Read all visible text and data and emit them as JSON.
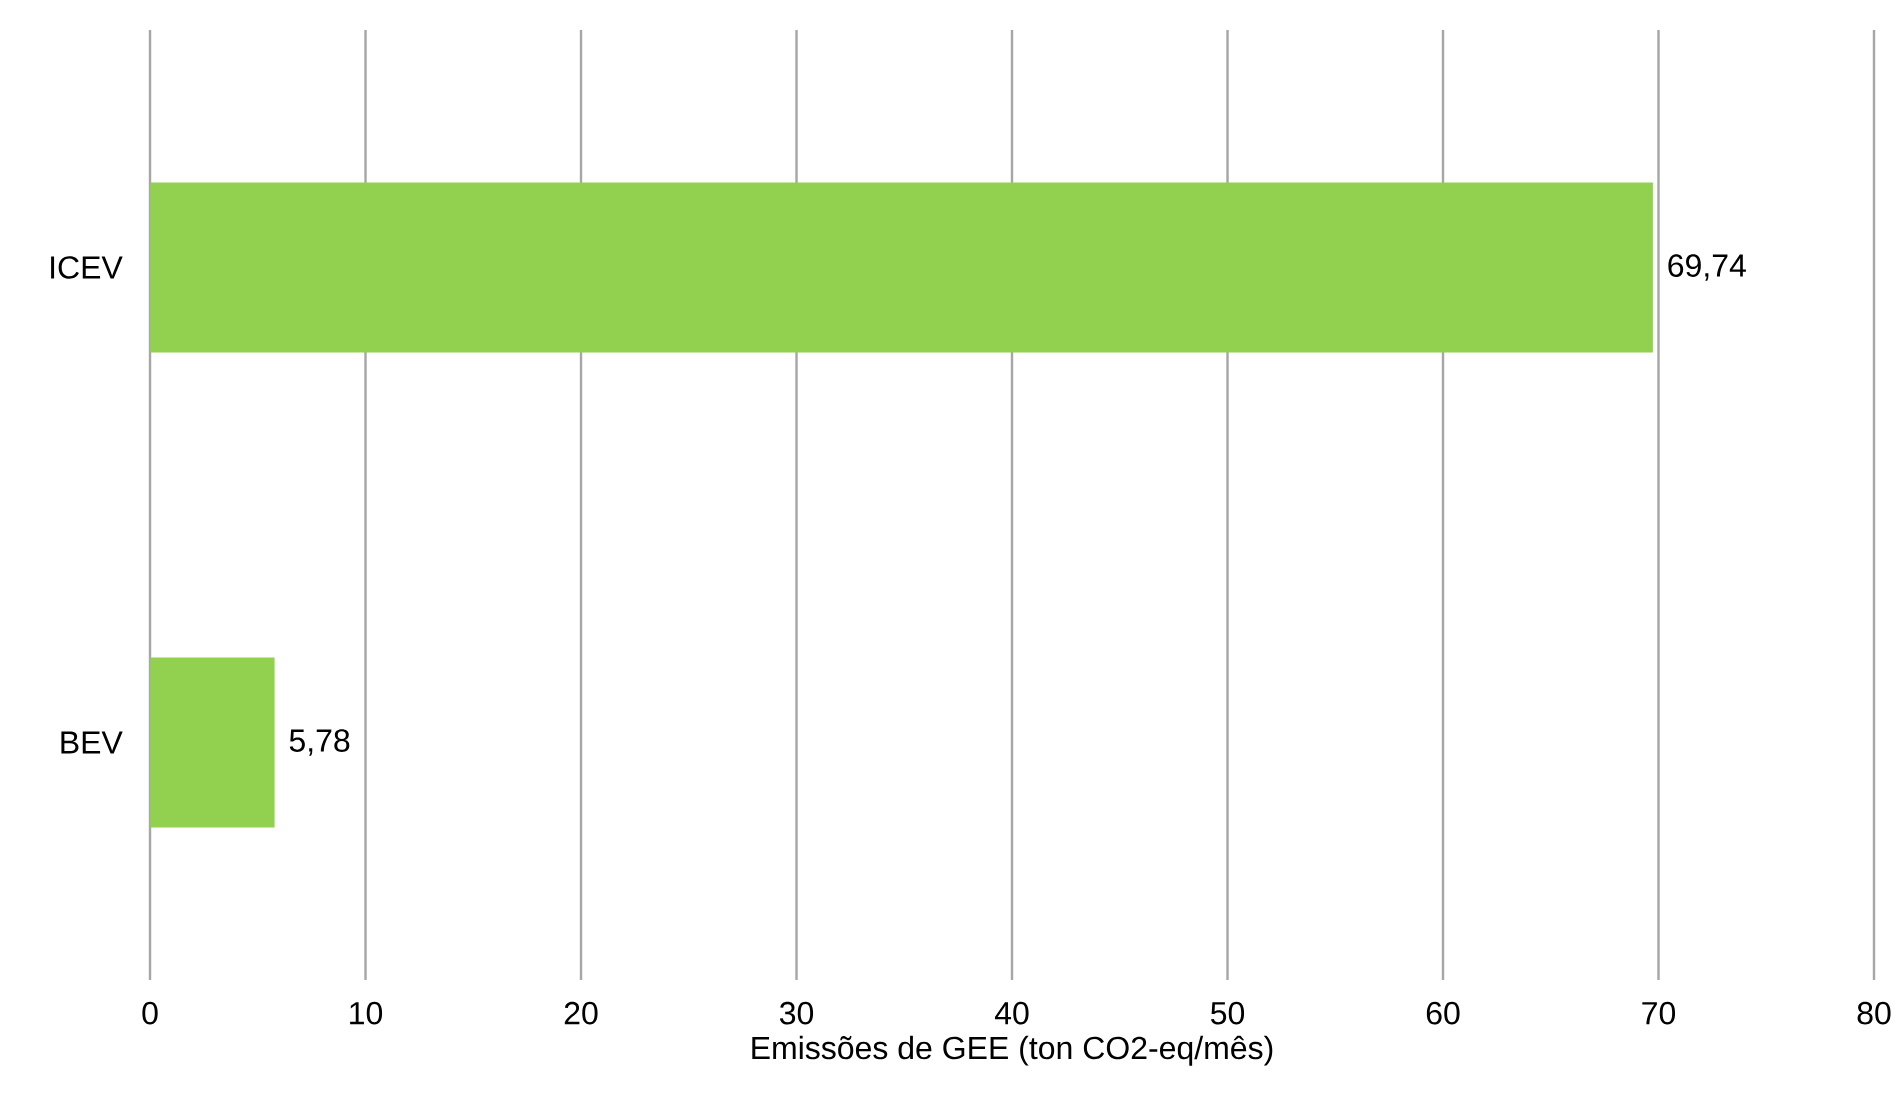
{
  "chart_data": {
    "type": "bar",
    "orientation": "horizontal",
    "xlabel": "Emissões de GEE (ton CO2-eq/mês)",
    "categories": [
      "ICEV",
      "BEV"
    ],
    "values": [
      69.74,
      5.78
    ],
    "value_labels": [
      "69,74",
      "5,78"
    ],
    "color": "#92d050",
    "xlim": [
      0,
      80
    ],
    "xticks": [
      0,
      10,
      20,
      30,
      40,
      50,
      60,
      70,
      80
    ],
    "grid": "x"
  }
}
